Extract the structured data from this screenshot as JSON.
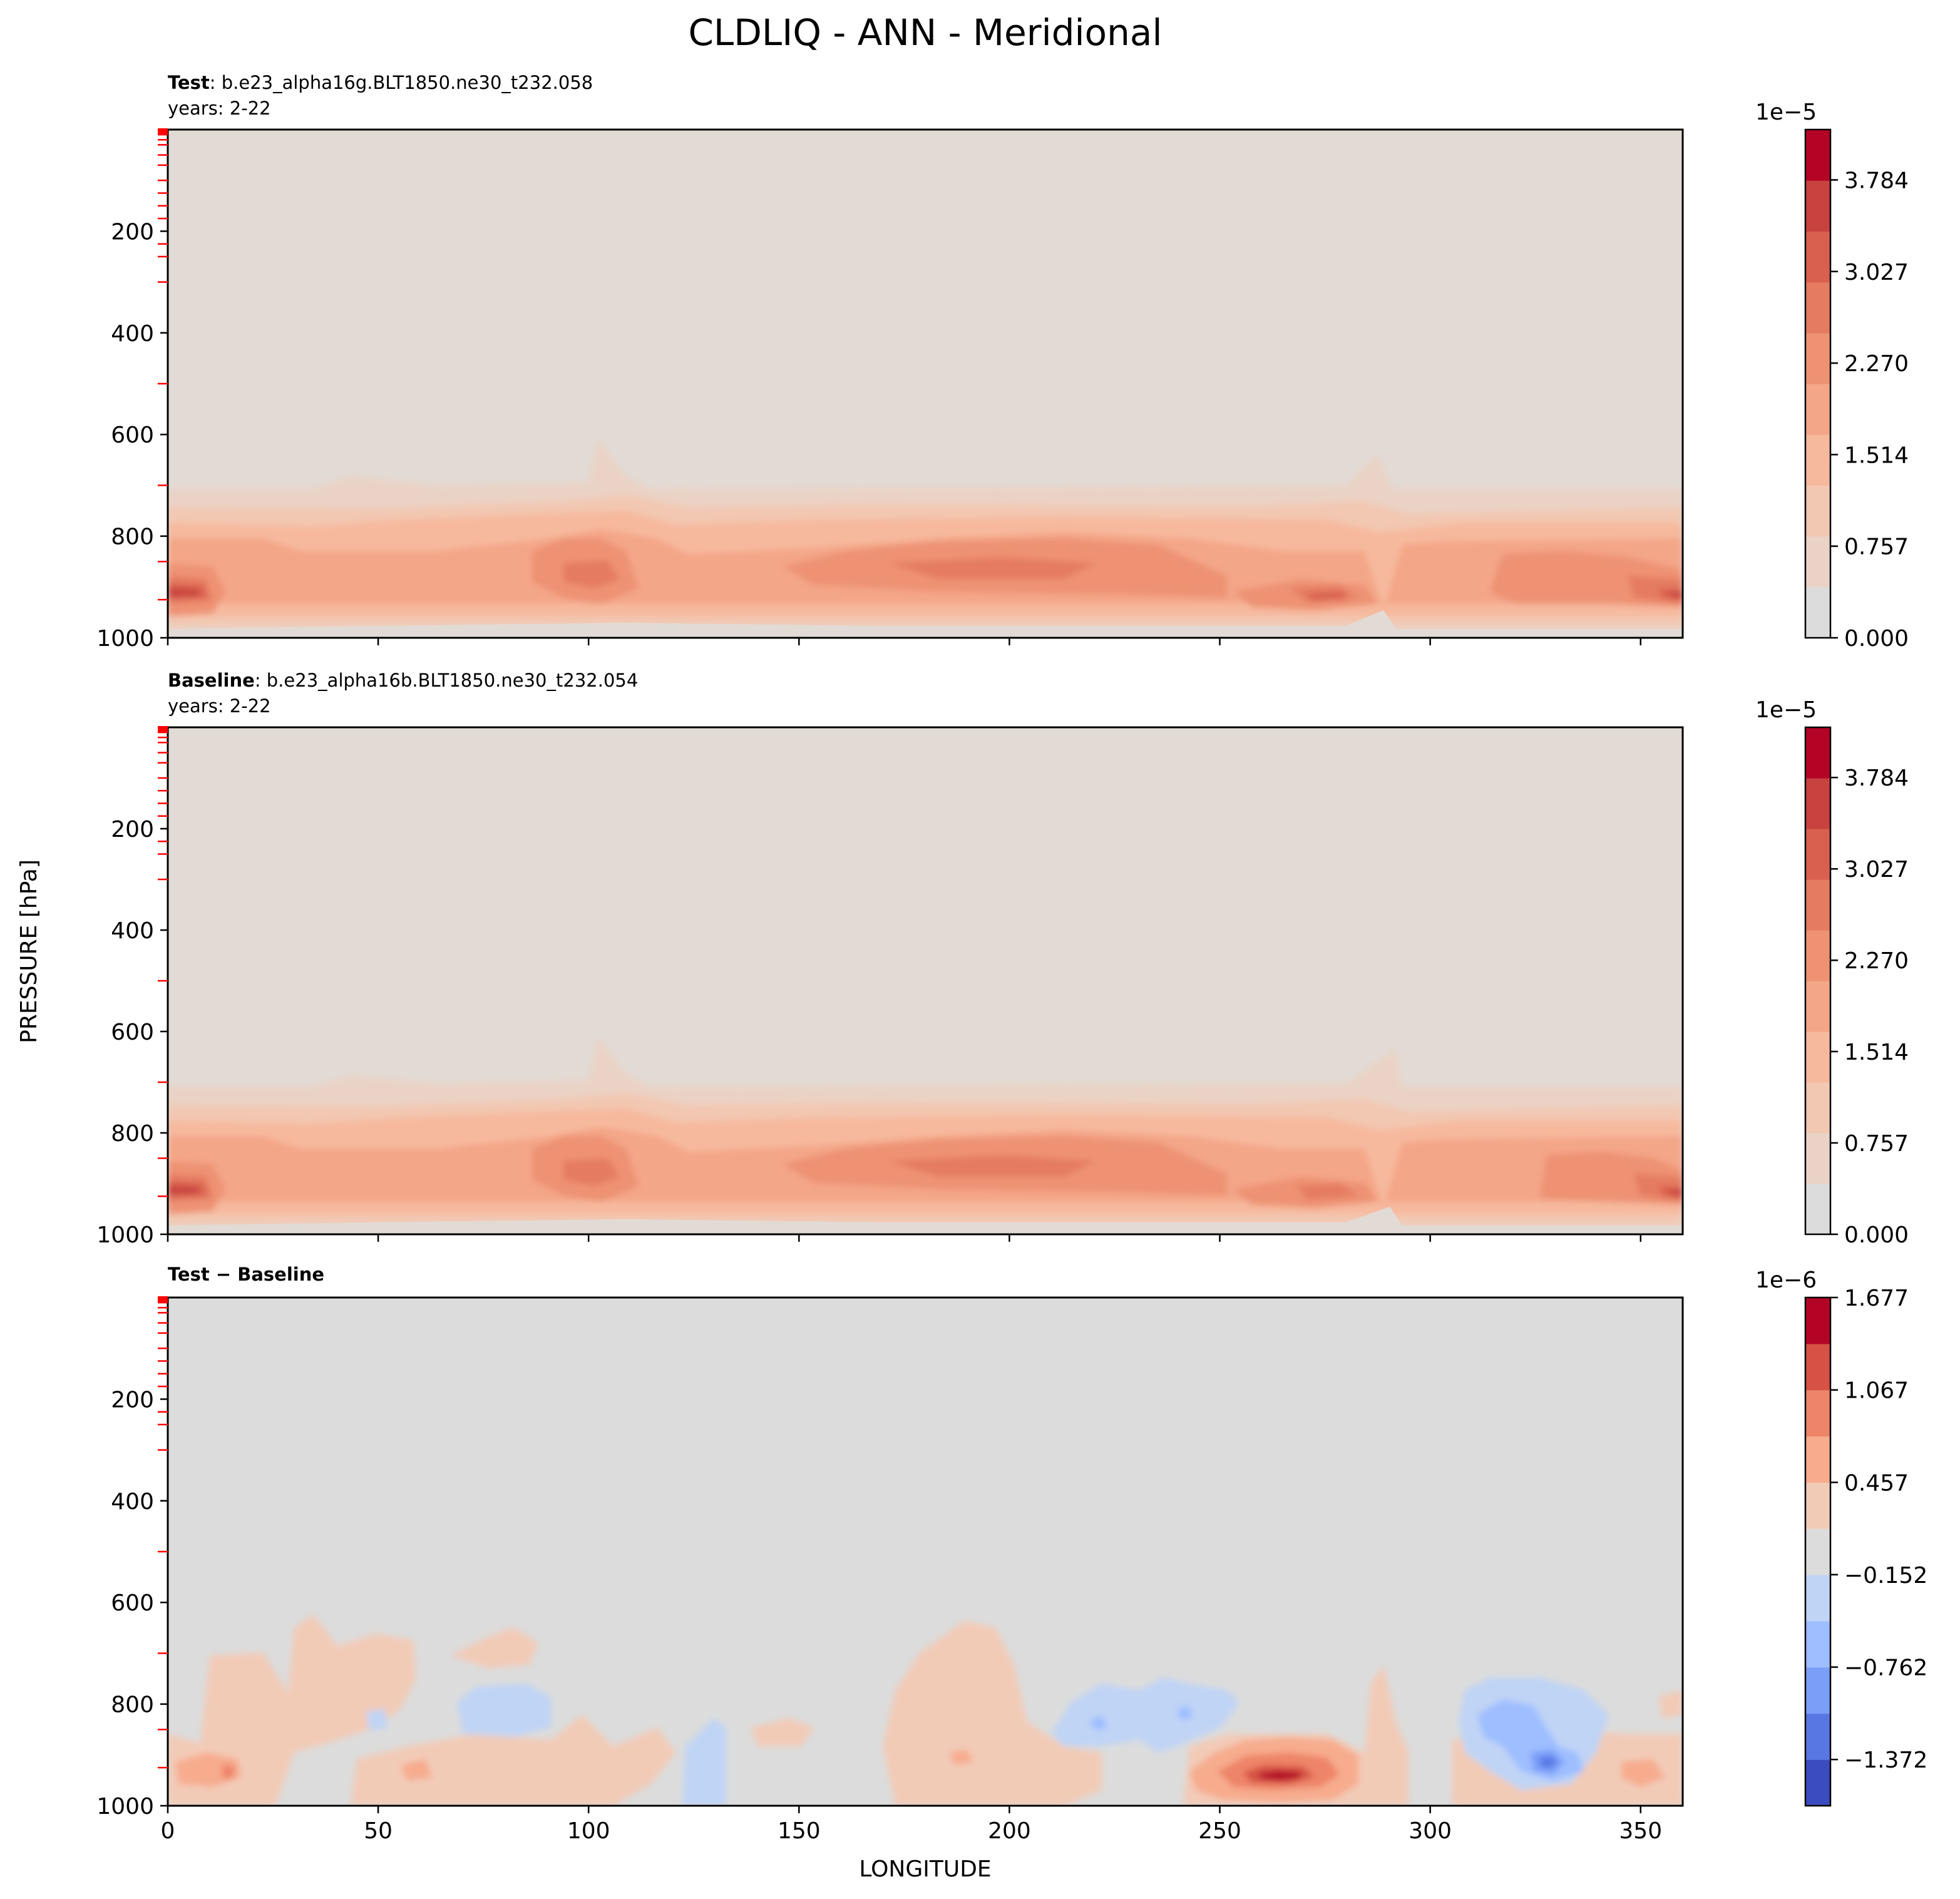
{
  "figure": {
    "title": "CLDLIQ - ANN - Meridional",
    "ylabel": "PRESSURE [hPa]",
    "xlabel": "LONGITUDE",
    "colors": {
      "bg_warm": "#e2dbd5",
      "bg_neutral": "#dcdcdc"
    }
  },
  "chart_data": [
    {
      "type": "heatmap",
      "panel": "test",
      "label_bold": "Test",
      "label_rest": ": b.e23_alpha16g.BLT1850.ne30_t232.058",
      "years": "years: 2-22",
      "x_range": [
        0,
        360
      ],
      "ylim": [
        1000,
        0
      ],
      "y_ticks": [
        "200",
        "400",
        "600",
        "800",
        "1000"
      ],
      "y_tick_values": [
        200,
        400,
        600,
        800,
        1000
      ],
      "colorbar": {
        "exponent": "1e−5",
        "ticks": [
          "0.000",
          "0.757",
          "1.514",
          "2.270",
          "3.027",
          "3.784"
        ],
        "tick_values": [
          0.0,
          0.757,
          1.514,
          2.27,
          3.027,
          3.784
        ],
        "max": 4.2,
        "colors": [
          "#dddcdc",
          "#ead3c6",
          "#f2c8b2",
          "#f6b99e",
          "#f4a688",
          "#ee9273",
          "#e57b60",
          "#d9604e",
          "#c8423f",
          "#b40426"
        ]
      }
    },
    {
      "type": "heatmap",
      "panel": "baseline",
      "label_bold": "Baseline",
      "label_rest": ": b.e23_alpha16b.BLT1850.ne30_t232.054",
      "years": "years: 2-22",
      "x_range": [
        0,
        360
      ],
      "ylim": [
        1000,
        0
      ],
      "y_ticks": [
        "200",
        "400",
        "600",
        "800",
        "1000"
      ],
      "y_tick_values": [
        200,
        400,
        600,
        800,
        1000
      ],
      "colorbar": {
        "exponent": "1e−5",
        "ticks": [
          "0.000",
          "0.757",
          "1.514",
          "2.270",
          "3.027",
          "3.784"
        ],
        "tick_values": [
          0.0,
          0.757,
          1.514,
          2.27,
          3.027,
          3.784
        ],
        "max": 4.2,
        "colors": [
          "#dddcdc",
          "#ead3c6",
          "#f2c8b2",
          "#f6b99e",
          "#f4a688",
          "#ee9273",
          "#e57b60",
          "#d9604e",
          "#c8423f",
          "#b40426"
        ]
      }
    },
    {
      "type": "heatmap",
      "panel": "difference",
      "label_bold": "Test − Baseline",
      "x_range": [
        0,
        360
      ],
      "x_ticks": [
        "0",
        "50",
        "100",
        "150",
        "200",
        "250",
        "300",
        "350"
      ],
      "x_tick_values": [
        0,
        50,
        100,
        150,
        200,
        250,
        300,
        350
      ],
      "ylim": [
        1000,
        0
      ],
      "y_ticks": [
        "200",
        "400",
        "600",
        "800",
        "1000"
      ],
      "y_tick_values": [
        200,
        400,
        600,
        800,
        1000
      ],
      "colorbar": {
        "exponent": "1e−6",
        "ticks": [
          "−1.372",
          "−0.762",
          "−0.152",
          "0.457",
          "1.067",
          "1.677"
        ],
        "tick_values": [
          -1.372,
          -0.762,
          -0.152,
          0.457,
          1.067,
          1.677
        ],
        "min": -1.677,
        "max": 1.677,
        "colors": [
          "#3b4cc0",
          "#5977e3",
          "#7b9ff9",
          "#9ebeff",
          "#c0d4f5",
          "#dddcdc",
          "#f2cbb7",
          "#f7ac8e",
          "#ee8468",
          "#d65244",
          "#b40426"
        ]
      }
    }
  ]
}
